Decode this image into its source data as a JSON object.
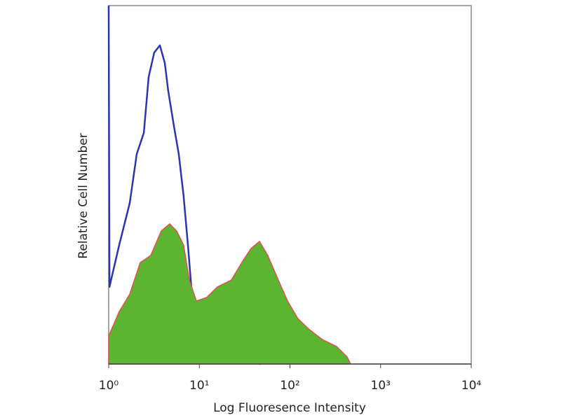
{
  "chart_data": {
    "type": "histogram-overlay",
    "x_label": "Log Fluoresence Intensity",
    "y_label": "Relative Cell Number",
    "x_log": true,
    "xlim": [
      1,
      10000
    ],
    "xticks": [
      {
        "value": 1,
        "label": "10⁰"
      },
      {
        "value": 10,
        "label": "10¹"
      },
      {
        "value": 100,
        "label": "10²"
      },
      {
        "value": 1000,
        "label": "10³"
      },
      {
        "value": 10000,
        "label": "10⁴"
      }
    ],
    "ylim": [
      0,
      100
    ],
    "series": [
      {
        "color": "#e05050",
        "fill": "#5cb531",
        "x": [
          1,
          1.306,
          1.706,
          2.23,
          2.91,
          3.8,
          4.71,
          5.62,
          6.7,
          7.76,
          9.27,
          12.1,
          15.8,
          22.5,
          29.4,
          37.1,
          46.1,
          56.9,
          71.5,
          93.9,
          122,
          160,
          228,
          326,
          426,
          466
        ],
        "values": [
          7.8,
          14.6,
          19.5,
          28.3,
          30.3,
          37.1,
          39.1,
          37.1,
          33.2,
          23.4,
          17.6,
          18.6,
          21.5,
          23.4,
          28.3,
          32.2,
          34.2,
          30.3,
          24.4,
          17.6,
          12.7,
          9.8,
          6.8,
          4.9,
          2,
          0
        ]
      },
      {
        "color": "#2a35b0",
        "x": [
          1,
          1.02,
          1.306,
          1.706,
          2.04,
          2.44,
          2.76,
          3.18,
          3.67,
          4.16,
          4.54,
          5.24,
          5.93,
          6.7,
          7.49,
          8.04,
          8.95,
          10.1,
          13.2,
          18.9,
          27,
          47.8
        ],
        "values": [
          100,
          21.5,
          33.2,
          44.9,
          58.6,
          64.5,
          80.1,
          86.9,
          88.9,
          84,
          76.2,
          66.4,
          58.6,
          46.9,
          33.2,
          23.4,
          9.8,
          3.9,
          2.9,
          1,
          1,
          0
        ]
      }
    ]
  }
}
